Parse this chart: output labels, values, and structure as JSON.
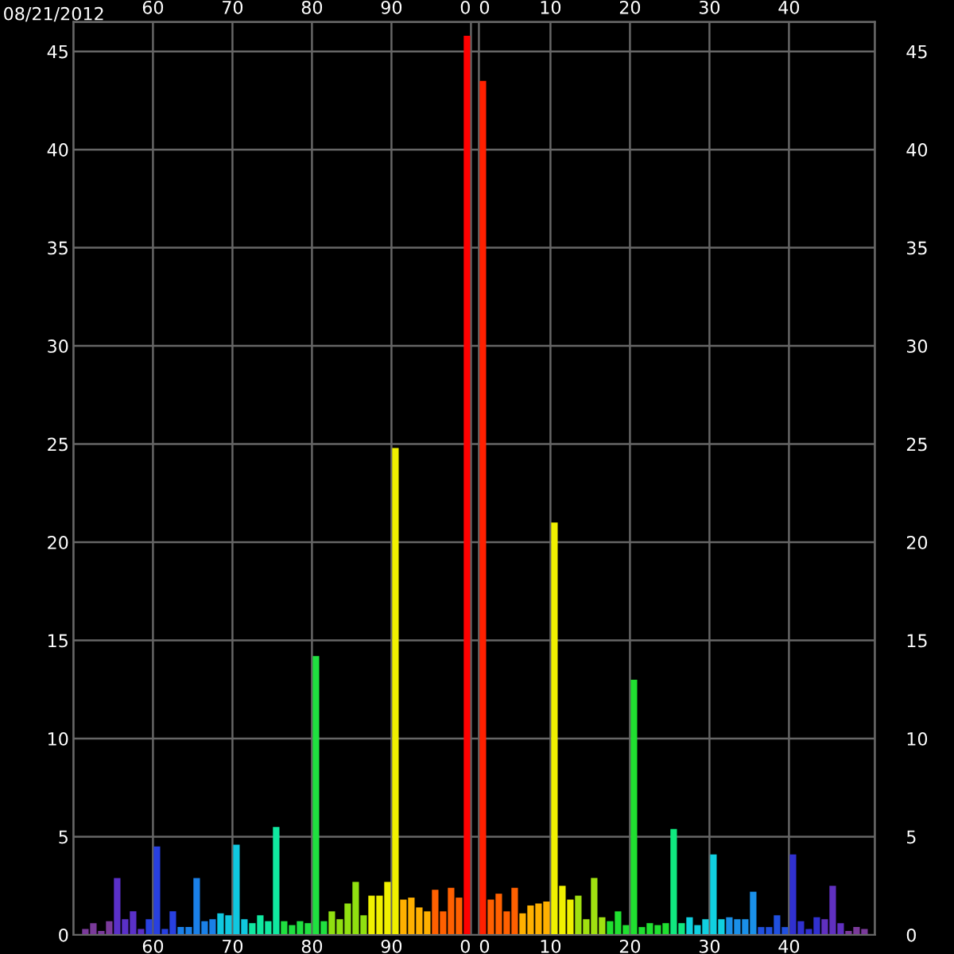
{
  "chart_data": {
    "type": "bar",
    "annotations": [
      "08/21/2012"
    ],
    "categories": [
      null,
      null,
      null,
      null,
      null,
      null,
      null,
      null,
      null,
      "60",
      null,
      null,
      null,
      null,
      null,
      null,
      null,
      null,
      null,
      "70",
      null,
      null,
      null,
      null,
      null,
      null,
      null,
      null,
      null,
      "80",
      null,
      null,
      null,
      null,
      null,
      null,
      null,
      null,
      null,
      "90",
      null,
      null,
      null,
      null,
      null,
      null,
      null,
      null,
      null,
      "0",
      "0",
      null,
      null,
      null,
      null,
      null,
      null,
      null,
      null,
      "10",
      null,
      null,
      null,
      null,
      null,
      null,
      null,
      null,
      null,
      "20",
      null,
      null,
      null,
      null,
      null,
      null,
      null,
      null,
      null,
      "30",
      null,
      null,
      null,
      null,
      null,
      null,
      null,
      null,
      null,
      "40",
      null,
      null,
      null,
      null,
      null,
      null,
      null,
      null,
      null
    ],
    "values": [
      0.3,
      0.6,
      0.2,
      0.7,
      2.9,
      0.8,
      1.2,
      0.3,
      0.8,
      4.5,
      0.3,
      1.2,
      0.4,
      0.4,
      2.9,
      0.7,
      0.8,
      1.1,
      1.0,
      4.6,
      0.8,
      0.6,
      1.0,
      0.7,
      5.5,
      0.7,
      0.5,
      0.7,
      0.6,
      14.2,
      0.7,
      1.2,
      0.8,
      1.6,
      2.7,
      1.0,
      2.0,
      2.0,
      2.7,
      24.8,
      1.8,
      1.9,
      1.4,
      1.2,
      2.3,
      1.2,
      2.4,
      1.9,
      45.8,
      null,
      43.5,
      1.8,
      2.1,
      1.2,
      2.4,
      1.1,
      1.5,
      1.6,
      1.7,
      21.0,
      2.5,
      1.8,
      2.0,
      0.8,
      2.9,
      0.9,
      0.7,
      1.2,
      0.5,
      13.0,
      0.4,
      0.6,
      0.5,
      0.6,
      5.4,
      0.6,
      0.9,
      0.5,
      0.8,
      4.1,
      0.8,
      0.9,
      0.8,
      0.8,
      2.2,
      0.4,
      0.4,
      1.0,
      0.4,
      4.1,
      0.7,
      0.3,
      0.9,
      0.8,
      2.5,
      0.6,
      0.2,
      0.4,
      0.3
    ],
    "colors": [
      "#7a3a9a",
      "#7a3a9a",
      "#7a3a9a",
      "#7a3a9a",
      "#5a30c8",
      "#5a30c8",
      "#5a30c8",
      "#5a30c8",
      "#2840e0",
      "#2840e0",
      "#2840e0",
      "#2840e0",
      "#1a80e8",
      "#1a80e8",
      "#1a80e8",
      "#1a80e8",
      "#1a80e8",
      "#10c8e0",
      "#10c8e0",
      "#10c8e0",
      "#10c8e0",
      "#10e8a0",
      "#10e8a0",
      "#10e8a0",
      "#10e8a0",
      "#20e040",
      "#20e040",
      "#20e040",
      "#20e040",
      "#20e040",
      "#20e040",
      "#90e010",
      "#90e010",
      "#90e010",
      "#90e010",
      "#90e010",
      "#f0f000",
      "#f0f000",
      "#f0f000",
      "#f0f000",
      "#ffb000",
      "#ffb000",
      "#ffb000",
      "#ffb000",
      "#ff6000",
      "#ff6000",
      "#ff6000",
      "#ff6000",
      "#ff0000",
      "#ff0000",
      "#ff2000",
      "#ff6000",
      "#ff6000",
      "#ff6000",
      "#ff6000",
      "#ffb000",
      "#ffb000",
      "#ffb000",
      "#ffb000",
      "#f0f000",
      "#f0f000",
      "#f0f000",
      "#a0e010",
      "#a0e010",
      "#a0e010",
      "#a0e010",
      "#20e030",
      "#20e030",
      "#20e030",
      "#20e030",
      "#20e030",
      "#20e030",
      "#20e030",
      "#20e030",
      "#10e880",
      "#10e880",
      "#10d0e0",
      "#10d0e0",
      "#10d0e0",
      "#10d0e0",
      "#10d0e0",
      "#1a90e8",
      "#1a90e8",
      "#1a90e8",
      "#1a90e8",
      "#2050e0",
      "#2050e0",
      "#2050e0",
      "#2050e0",
      "#3030d0",
      "#3030d0",
      "#3030d0",
      "#3030d0",
      "#6030c0",
      "#6030c0",
      "#6030c0",
      "#7a3a9a",
      "#7a3a9a",
      "#7a3a9a"
    ],
    "ylim": [
      0,
      46.5
    ],
    "yticks": [
      0,
      5,
      10,
      15,
      20,
      25,
      30,
      35,
      40,
      45
    ],
    "y2lim": [
      0,
      46.5
    ],
    "y2ticks": [
      0,
      5,
      10,
      15,
      20,
      25,
      30,
      35,
      40,
      45
    ],
    "grid": true,
    "legend": false
  }
}
